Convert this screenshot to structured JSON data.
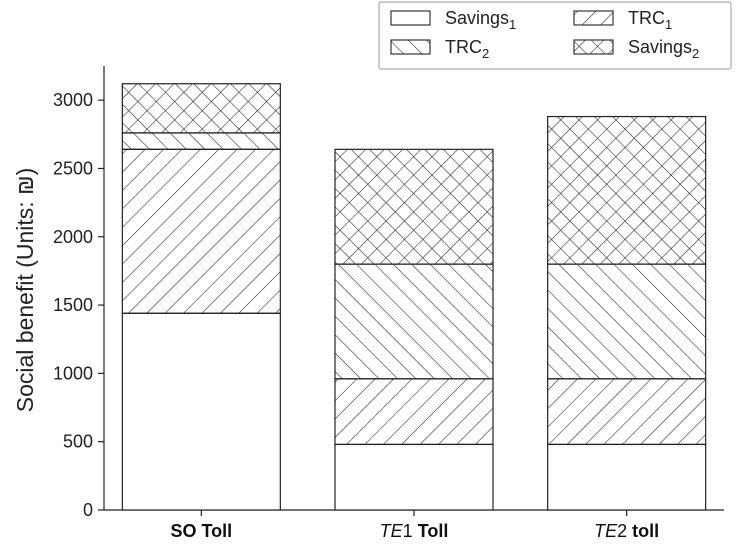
{
  "chart_data": {
    "type": "bar",
    "stacked": true,
    "categories": [
      {
        "parts": [
          {
            "text": "SO Toll",
            "italic": false,
            "bold": true
          }
        ]
      },
      {
        "parts": [
          {
            "text": "TE",
            "italic": true,
            "bold": false
          },
          {
            "text": "1",
            "italic": false,
            "bold": false
          },
          {
            "text": " Toll",
            "italic": false,
            "bold": true
          }
        ]
      },
      {
        "parts": [
          {
            "text": "TE",
            "italic": true,
            "bold": false
          },
          {
            "text": "2",
            "italic": false,
            "bold": false
          },
          {
            "text": " toll",
            "italic": false,
            "bold": true
          }
        ]
      }
    ],
    "series": [
      {
        "name": "Savings",
        "subscript": "1",
        "pattern": "none",
        "values": [
          1440,
          480,
          480
        ]
      },
      {
        "name": "TRC",
        "subscript": "1",
        "pattern": "diagonal-forward",
        "values": [
          1200,
          480,
          480
        ]
      },
      {
        "name": "TRC",
        "subscript": "2",
        "pattern": "diagonal-backward",
        "values": [
          120,
          840,
          840
        ]
      },
      {
        "name": "Savings",
        "subscript": "2",
        "pattern": "crosshatch",
        "values": [
          360,
          840,
          1080
        ]
      }
    ],
    "legend_order": [
      0,
      2,
      1,
      3
    ],
    "ylabel": "Social benefit (Units: ₪)",
    "xlabel": "",
    "title": "",
    "ylim": [
      0,
      3250
    ],
    "yticks": [
      0,
      500,
      1000,
      1500,
      2000,
      2500,
      3000
    ],
    "grid": false,
    "legend_placement": "top-right"
  }
}
